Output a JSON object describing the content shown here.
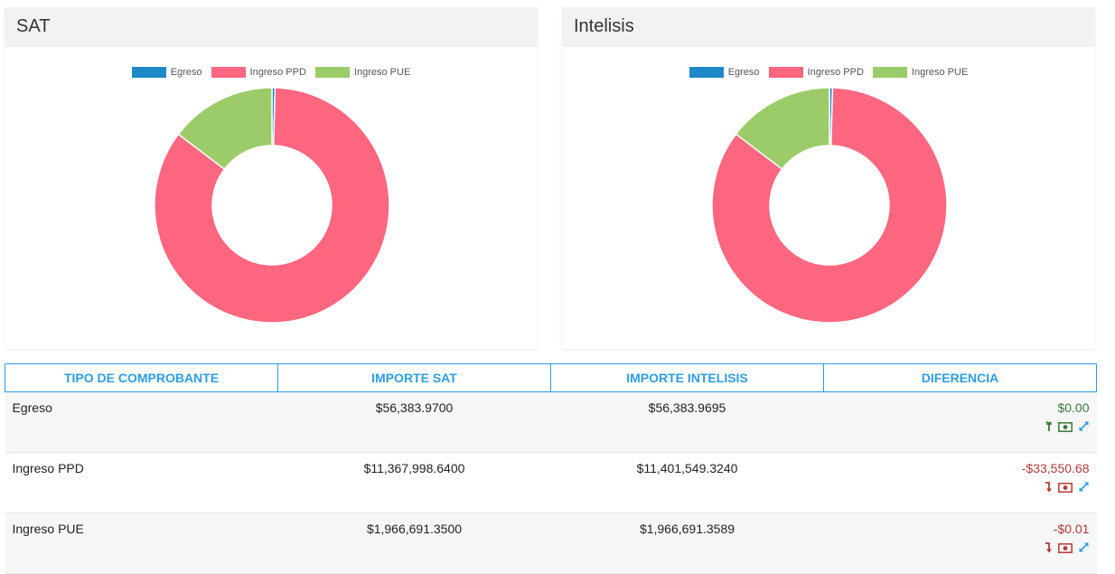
{
  "legend": [
    {
      "label": "Egreso",
      "color": "#1f88c8"
    },
    {
      "label": "Ingreso PPD",
      "color": "#ff6680"
    },
    {
      "label": "Ingreso PUE",
      "color": "#9ccb69"
    }
  ],
  "panels": {
    "sat": {
      "title": "SAT"
    },
    "intelisis": {
      "title": "Intelisis"
    }
  },
  "chart_data": [
    {
      "type": "pie",
      "title": "SAT",
      "categories": [
        "Egreso",
        "Ingreso PPD",
        "Ingreso PUE"
      ],
      "values": [
        56383.97,
        11367998.64,
        1966691.35
      ],
      "colors": [
        "#1f88c8",
        "#ff6680",
        "#9ccb69"
      ],
      "legend": "top"
    },
    {
      "type": "pie",
      "title": "Intelisis",
      "categories": [
        "Egreso",
        "Ingreso PPD",
        "Ingreso PUE"
      ],
      "values": [
        56383.9695,
        11401549.324,
        1966691.3589
      ],
      "colors": [
        "#1f88c8",
        "#ff6680",
        "#9ccb69"
      ],
      "legend": "top"
    }
  ],
  "table": {
    "headers": [
      "TIPO DE COMPROBANTE",
      "IMPORTE SAT",
      "IMPORTE INTELISIS",
      "DIFERENCIA"
    ],
    "rows": [
      {
        "tipo": "Egreso",
        "sat": "$56,383.9700",
        "intelisis": "$56,383.9695",
        "diferencia": "$0.00",
        "sign": "positive"
      },
      {
        "tipo": "Ingreso PPD",
        "sat": "$11,367,998.6400",
        "intelisis": "$11,401,549.3240",
        "diferencia": "-$33,550.68",
        "sign": "negative"
      },
      {
        "tipo": "Ingreso PUE",
        "sat": "$1,966,691.3500",
        "intelisis": "$1,966,691.3589",
        "diferencia": "-$0.01",
        "sign": "negative"
      }
    ]
  },
  "icons": {
    "up": "arrow-up-icon",
    "down": "arrow-down-icon",
    "money": "money-icon",
    "expand": "expand-icon"
  }
}
